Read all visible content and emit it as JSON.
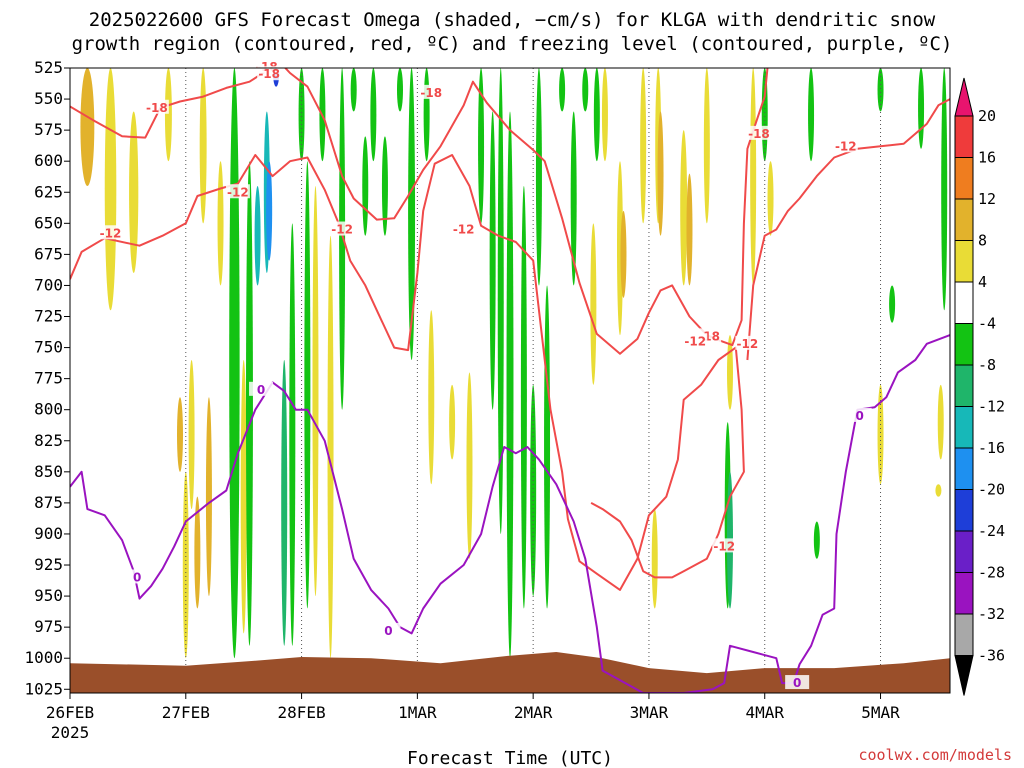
{
  "chart_data": {
    "type": "heatmap",
    "title_lines": [
      "2025022600 GFS Forecast Omega (shaded, −cm/s) for KLGA with dendritic snow",
      "growth region (contoured, red, ºC) and freezing level (contoured, purple, ºC)"
    ],
    "xlabel": "Forecast Time (UTC)",
    "credit": "coolwx.com/models",
    "x_ticks": [
      "26FEB",
      "27FEB",
      "28FEB",
      "1MAR",
      "2MAR",
      "3MAR",
      "4MAR",
      "5MAR"
    ],
    "x_year_label": "2025",
    "x_range_days": [
      0,
      7.6
    ],
    "y_ticks": [
      525,
      550,
      575,
      600,
      625,
      650,
      675,
      700,
      725,
      750,
      775,
      800,
      825,
      850,
      875,
      900,
      925,
      950,
      975,
      1000,
      1025
    ],
    "y_range_hpa": [
      525,
      1028
    ],
    "grid": "dotted-vertical",
    "colorbar": {
      "levels": [
        20,
        16,
        12,
        8,
        4,
        -4,
        -8,
        -12,
        -16,
        -20,
        -24,
        -28,
        -32,
        -36
      ],
      "colors": [
        "#e8146e",
        "#ef3b3b",
        "#ef7d1f",
        "#e2b22c",
        "#e9dc36",
        "#ffffff",
        "#13c313",
        "#1fb56a",
        "#17b8b8",
        "#1e90f0",
        "#1e3ed8",
        "#6a1fc8",
        "#9a13c0",
        "#a8a8a8",
        "#000000"
      ]
    },
    "series": [
      {
        "name": "-18",
        "color": "#f04a4a",
        "points": [
          [
            0.0,
            556
          ],
          [
            0.2,
            567
          ],
          [
            0.45,
            580
          ],
          [
            0.65,
            581
          ],
          [
            0.78,
            557
          ],
          [
            0.95,
            552
          ],
          [
            1.15,
            548
          ],
          [
            1.35,
            541
          ],
          [
            1.55,
            536
          ],
          [
            1.7,
            527
          ],
          [
            1.82,
            521
          ],
          [
            1.9,
            529
          ],
          [
            2.05,
            540
          ],
          [
            2.2,
            567
          ],
          [
            2.35,
            612
          ],
          [
            2.45,
            630
          ],
          [
            2.65,
            647
          ],
          [
            2.8,
            646
          ],
          [
            2.92,
            628
          ],
          [
            3.05,
            607
          ],
          [
            3.2,
            588
          ],
          [
            3.4,
            555
          ],
          [
            3.48,
            536
          ],
          [
            3.6,
            553
          ],
          [
            3.8,
            575
          ],
          [
            4.0,
            591
          ],
          [
            4.1,
            600
          ],
          [
            4.25,
            646
          ],
          [
            4.4,
            698
          ],
          [
            4.55,
            739
          ],
          [
            4.75,
            755
          ],
          [
            4.9,
            743
          ],
          [
            5.0,
            722
          ],
          [
            5.1,
            704
          ],
          [
            5.2,
            700
          ],
          [
            5.35,
            725
          ],
          [
            5.5,
            740
          ],
          [
            5.6,
            744
          ],
          [
            5.72,
            748
          ],
          [
            5.8,
            728
          ],
          [
            5.82,
            650
          ],
          [
            5.85,
            590
          ],
          [
            5.92,
            570
          ],
          [
            6.0,
            548
          ],
          [
            6.05,
            500
          ]
        ],
        "labels": [
          [
            0.75,
            557,
            "-18"
          ],
          [
            1.7,
            524,
            "-18"
          ],
          [
            1.72,
            530,
            "-18"
          ],
          [
            3.12,
            545,
            "-18"
          ],
          [
            5.52,
            741,
            "-18"
          ],
          [
            5.95,
            578,
            "-18"
          ]
        ]
      },
      {
        "name": "-12",
        "color": "#f04a4a",
        "points": [
          [
            0.0,
            695
          ],
          [
            0.1,
            673
          ],
          [
            0.3,
            662
          ],
          [
            0.6,
            668
          ],
          [
            0.8,
            660
          ],
          [
            1.0,
            650
          ],
          [
            1.1,
            628
          ],
          [
            1.3,
            622
          ],
          [
            1.45,
            618
          ],
          [
            1.6,
            595
          ],
          [
            1.75,
            612
          ],
          [
            1.9,
            600
          ],
          [
            2.05,
            597
          ],
          [
            2.2,
            623
          ],
          [
            2.32,
            650
          ],
          [
            2.42,
            680
          ],
          [
            2.55,
            700
          ],
          [
            2.65,
            720
          ],
          [
            2.8,
            750
          ],
          [
            2.92,
            752
          ],
          [
            3.0,
            690
          ],
          [
            3.05,
            640
          ],
          [
            3.15,
            602
          ],
          [
            3.3,
            595
          ],
          [
            3.45,
            620
          ],
          [
            3.55,
            652
          ],
          [
            3.7,
            660
          ],
          [
            3.85,
            665
          ],
          [
            4.0,
            680
          ],
          [
            4.15,
            800
          ],
          [
            4.25,
            850
          ],
          [
            4.3,
            888
          ],
          [
            4.4,
            922
          ],
          [
            4.55,
            932
          ],
          [
            4.75,
            945
          ],
          [
            4.9,
            920
          ],
          [
            5.0,
            885
          ],
          [
            5.15,
            870
          ],
          [
            5.25,
            840
          ],
          [
            5.3,
            792
          ],
          [
            5.45,
            780
          ],
          [
            5.6,
            760
          ],
          [
            5.75,
            750
          ],
          [
            5.8,
            800
          ],
          [
            5.82,
            850
          ],
          [
            5.7,
            870
          ],
          [
            5.6,
            900
          ],
          [
            5.5,
            920
          ],
          [
            5.3,
            930
          ],
          [
            5.2,
            935
          ],
          [
            5.05,
            935
          ],
          [
            4.95,
            930
          ],
          [
            4.85,
            905
          ],
          [
            4.75,
            890
          ],
          [
            4.6,
            880
          ],
          [
            4.5,
            875
          ]
        ],
        "labels": [
          [
            0.35,
            658,
            "-12"
          ],
          [
            1.45,
            625,
            "-12"
          ],
          [
            2.35,
            655,
            "-12"
          ],
          [
            3.4,
            655,
            "-12"
          ],
          [
            5.4,
            745,
            "-12"
          ],
          [
            5.85,
            747,
            "-12"
          ],
          [
            5.65,
            910,
            "-12"
          ],
          [
            6.7,
            588,
            "-12"
          ]
        ]
      },
      {
        "name": "-12 upper-right",
        "color": "#f04a4a",
        "points": [
          [
            5.85,
            760
          ],
          [
            5.9,
            700
          ],
          [
            6.0,
            660
          ],
          [
            6.1,
            655
          ],
          [
            6.2,
            640
          ],
          [
            6.3,
            630
          ],
          [
            6.45,
            612
          ],
          [
            6.6,
            597
          ],
          [
            6.8,
            590
          ],
          [
            7.0,
            588
          ],
          [
            7.2,
            586
          ],
          [
            7.4,
            570
          ],
          [
            7.5,
            555
          ],
          [
            7.6,
            550
          ]
        ],
        "labels": []
      },
      {
        "name": "0",
        "color": "#9a13c0",
        "points": [
          [
            0.0,
            862
          ],
          [
            0.1,
            850
          ],
          [
            0.15,
            880
          ],
          [
            0.3,
            885
          ],
          [
            0.45,
            905
          ],
          [
            0.55,
            930
          ],
          [
            0.6,
            952
          ],
          [
            0.7,
            942
          ],
          [
            0.8,
            928
          ],
          [
            0.9,
            910
          ],
          [
            1.0,
            890
          ],
          [
            1.2,
            875
          ],
          [
            1.35,
            865
          ],
          [
            1.45,
            835
          ],
          [
            1.6,
            800
          ],
          [
            1.75,
            778
          ],
          [
            1.85,
            785
          ],
          [
            1.95,
            800
          ],
          [
            2.05,
            800
          ],
          [
            2.2,
            825
          ],
          [
            2.35,
            880
          ],
          [
            2.45,
            920
          ],
          [
            2.6,
            945
          ],
          [
            2.75,
            960
          ],
          [
            2.85,
            975
          ],
          [
            2.95,
            980
          ],
          [
            3.05,
            960
          ],
          [
            3.2,
            940
          ],
          [
            3.4,
            925
          ],
          [
            3.55,
            900
          ],
          [
            3.65,
            862
          ],
          [
            3.75,
            830
          ],
          [
            3.85,
            835
          ],
          [
            3.95,
            830
          ],
          [
            4.05,
            840
          ],
          [
            4.2,
            860
          ],
          [
            4.35,
            890
          ],
          [
            4.45,
            920
          ],
          [
            4.55,
            975
          ],
          [
            4.6,
            1010
          ],
          [
            4.95,
            1028
          ],
          [
            5.3,
            1028
          ],
          [
            5.55,
            1025
          ],
          [
            5.65,
            1020
          ],
          [
            5.7,
            990
          ],
          [
            5.9,
            995
          ],
          [
            6.1,
            1000
          ],
          [
            6.15,
            1020
          ],
          [
            6.25,
            1020
          ],
          [
            6.3,
            1005
          ],
          [
            6.4,
            990
          ],
          [
            6.5,
            965
          ],
          [
            6.6,
            960
          ],
          [
            6.62,
            900
          ],
          [
            6.7,
            850
          ],
          [
            6.8,
            800
          ],
          [
            6.95,
            798
          ],
          [
            7.05,
            790
          ],
          [
            7.15,
            770
          ],
          [
            7.3,
            760
          ],
          [
            7.4,
            747
          ],
          [
            7.6,
            740
          ]
        ],
        "labels": [
          [
            0.58,
            935,
            "0"
          ],
          [
            1.65,
            784,
            "0"
          ],
          [
            2.75,
            978,
            "0"
          ],
          [
            6.28,
            1020,
            "0"
          ],
          [
            6.82,
            805,
            "0"
          ]
        ]
      }
    ]
  }
}
